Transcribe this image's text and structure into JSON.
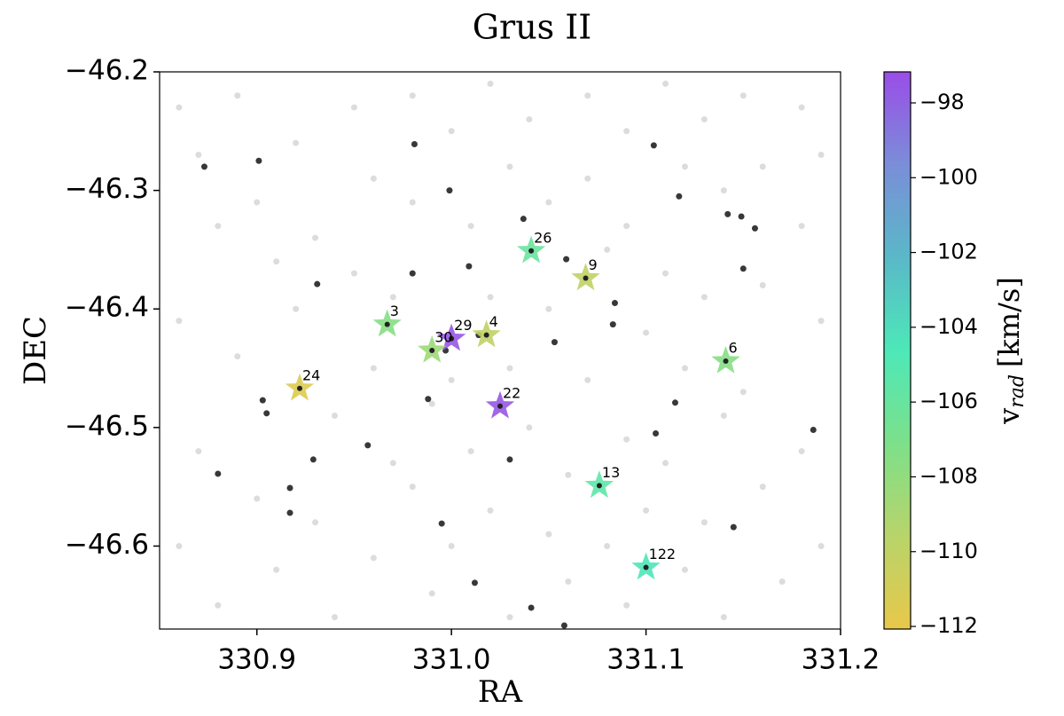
{
  "chart_data": {
    "type": "scatter",
    "title": "Grus II",
    "x_label": "RA",
    "y_label": "DEC",
    "xlim": [
      330.85,
      331.2
    ],
    "ylim": [
      -46.67,
      -46.2
    ],
    "xticks": [
      330.9,
      {
        "value": 331,
        "label": "331.0"
      },
      331.1,
      331.2
    ],
    "yticks": [
      {
        "value": -46.2,
        "label": "−46.2"
      },
      {
        "value": -46.3,
        "label": "−46.3"
      },
      {
        "value": -46.4,
        "label": "−46.4"
      },
      {
        "value": -46.5,
        "label": "−46.5"
      },
      {
        "value": -46.6,
        "label": "−46.6"
      }
    ],
    "series": [
      {
        "marker": "dot",
        "color": "#c4c4c4",
        "alpha": 0.6,
        "x": [
          330.86,
          330.87,
          330.88,
          330.86,
          330.87,
          330.86,
          330.88,
          330.89,
          330.9,
          330.91,
          330.89,
          330.9,
          330.91,
          330.92,
          330.93,
          330.92,
          330.94,
          330.93,
          330.94,
          330.95,
          330.96,
          330.95,
          330.96,
          330.97,
          330.96,
          330.98,
          330.98,
          330.97,
          330.99,
          330.98,
          330.99,
          331.0,
          331.01,
          331.0,
          331.01,
          331.0,
          331.02,
          331.03,
          331.02,
          331.03,
          331.02,
          331.03,
          331.04,
          331.05,
          331.05,
          331.04,
          331.05,
          331.06,
          331.07,
          331.07,
          331.08,
          331.07,
          331.06,
          331.08,
          331.09,
          331.09,
          331.1,
          331.09,
          331.1,
          331.09,
          331.11,
          331.12,
          331.11,
          331.12,
          331.11,
          331.12,
          331.13,
          331.14,
          331.13,
          331.14,
          331.13,
          331.14,
          331.15,
          331.16,
          331.16,
          331.15,
          331.16,
          331.17,
          331.18,
          331.18,
          331.19,
          331.18,
          331.19,
          331.19
        ],
        "y": [
          -46.23,
          -46.27,
          -46.33,
          -46.41,
          -46.52,
          -46.6,
          -46.65,
          -46.22,
          -46.31,
          -46.36,
          -46.44,
          -46.56,
          -46.62,
          -46.26,
          -46.34,
          -46.4,
          -46.49,
          -46.58,
          -46.66,
          -46.23,
          -46.29,
          -46.37,
          -46.45,
          -46.53,
          -46.61,
          -46.22,
          -46.31,
          -46.39,
          -46.48,
          -46.55,
          -46.64,
          -46.25,
          -46.33,
          -46.46,
          -46.52,
          -46.6,
          -46.21,
          -46.28,
          -46.39,
          -46.45,
          -46.57,
          -46.66,
          -46.24,
          -46.31,
          -46.4,
          -46.5,
          -46.59,
          -46.63,
          -46.22,
          -46.29,
          -46.35,
          -46.46,
          -46.54,
          -46.6,
          -46.25,
          -46.33,
          -46.42,
          -46.51,
          -46.57,
          -46.65,
          -46.21,
          -46.28,
          -46.37,
          -46.45,
          -46.53,
          -46.62,
          -46.24,
          -46.3,
          -46.39,
          -46.49,
          -46.58,
          -46.66,
          -46.22,
          -46.28,
          -46.38,
          -46.47,
          -46.55,
          -46.63,
          -46.23,
          -46.33,
          -46.41,
          -46.52,
          -46.6,
          -46.27
        ]
      },
      {
        "marker": "dot",
        "color": "#222222",
        "alpha": 0.9,
        "x": [
          330.873,
          330.901,
          330.981,
          330.999,
          331.037,
          331.104,
          331.117,
          331.142,
          331.149,
          331.156,
          331.15,
          331.009,
          331.059,
          330.98,
          330.931,
          331.084,
          331.083,
          331.014,
          330.997,
          331.053,
          330.988,
          330.903,
          330.905,
          331.115,
          331.105,
          330.957,
          331.03,
          330.929,
          330.88,
          330.917,
          330.917,
          330.995,
          331.145,
          331.012,
          331.041,
          331.058,
          331.186
        ],
        "y": [
          -46.28,
          -46.275,
          -46.261,
          -46.3,
          -46.324,
          -46.262,
          -46.305,
          -46.32,
          -46.322,
          -46.332,
          -46.366,
          -46.364,
          -46.358,
          -46.37,
          -46.379,
          -46.395,
          -46.413,
          -46.422,
          -46.435,
          -46.428,
          -46.476,
          -46.477,
          -46.488,
          -46.479,
          -46.505,
          -46.515,
          -46.527,
          -46.527,
          -46.539,
          -46.551,
          -46.572,
          -46.581,
          -46.584,
          -46.631,
          -46.652,
          -46.667,
          -46.502
        ]
      },
      {
        "marker": "star",
        "color": "#222222",
        "labels": [
          "26",
          "9",
          "3",
          "29",
          "4",
          "30",
          "24",
          "22",
          "6",
          "13",
          "122"
        ],
        "x": [
          331.041,
          331.069,
          330.967,
          331.0,
          331.018,
          330.99,
          330.922,
          331.025,
          331.141,
          331.076,
          331.1
        ],
        "y": [
          -46.351,
          -46.374,
          -46.413,
          -46.425,
          -46.422,
          -46.435,
          -46.467,
          -46.482,
          -46.444,
          -46.549,
          -46.618
        ],
        "values": [
          -106,
          -110,
          -107.5,
          -97.5,
          -110,
          -108.5,
          -111.5,
          -97.5,
          -107.5,
          -105.5,
          -104.5
        ]
      }
    ],
    "colorbar": {
      "label": {
        "symbol": "v",
        "subscript": "rad",
        "units": "[km/s]"
      },
      "clim": [
        -112.07,
        -97.17
      ],
      "colormap": [
        "#e8c84a",
        "#b8d46a",
        "#7de08a",
        "#4de8b8",
        "#5ab8c8",
        "#7a8ed8",
        "#9a4de8"
      ],
      "ticks": [
        {
          "value": -98,
          "label": "−98"
        },
        {
          "value": -100,
          "label": "−100"
        },
        {
          "value": -102,
          "label": "−102"
        },
        {
          "value": -104,
          "label": "−104"
        },
        {
          "value": -106,
          "label": "−106"
        },
        {
          "value": -108,
          "label": "−108"
        },
        {
          "value": -110,
          "label": "−110"
        },
        {
          "value": -112,
          "label": "−112"
        }
      ]
    }
  }
}
